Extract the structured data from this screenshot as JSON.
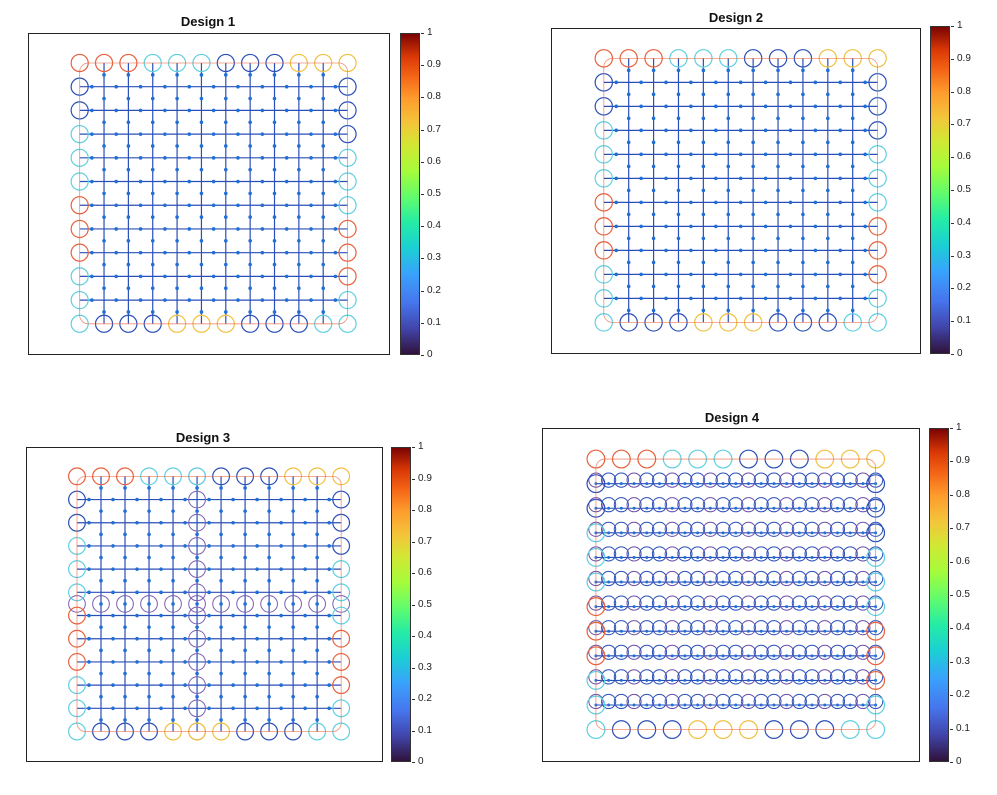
{
  "panels": [
    {
      "title": "Design 1",
      "style": "grid"
    },
    {
      "title": "Design 2",
      "style": "grid"
    },
    {
      "title": "Design 3",
      "style": "split"
    },
    {
      "title": "Design 4",
      "style": "loops"
    }
  ],
  "colorbar": {
    "ticks": [
      "1",
      "0.9",
      "0.8",
      "0.7",
      "0.6",
      "0.5",
      "0.4",
      "0.3",
      "0.2",
      "0.1",
      "0"
    ],
    "colormap": "jet-like"
  },
  "colors": {
    "lattice": "#2a4fb8",
    "node": "#1f6fd6",
    "frame": "#222222",
    "edge_hot": "#e8603c",
    "edge_warm": "#f0c040",
    "edge_cool": "#5fd0e0"
  }
}
